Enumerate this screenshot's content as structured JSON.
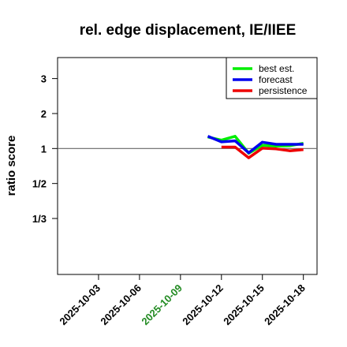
{
  "chart_data": {
    "type": "line",
    "title": "rel. edge displacement, IE/IIEE",
    "xlabel": "",
    "ylabel": "ratio score",
    "y_scale": "reciprocal-symmetric (values below 1 shown as 1/n)",
    "ylim": [
      -2.6,
      3.6
    ],
    "y_ticks": [
      {
        "label": "3",
        "value": 3
      },
      {
        "label": "2",
        "value": 2
      },
      {
        "label": "1",
        "value": 1
      },
      {
        "label": "1/2",
        "value": 0.5
      },
      {
        "label": "1/3",
        "value": 0.3333
      }
    ],
    "x_range": [
      "2025-09-30",
      "2025-10-19"
    ],
    "x_ticks": [
      {
        "label": "2025-10-03",
        "date": "2025-10-03",
        "color": "#000000"
      },
      {
        "label": "2025-10-06",
        "date": "2025-10-06",
        "color": "#000000"
      },
      {
        "label": "2025-10-09",
        "date": "2025-10-09",
        "color": "#228B22"
      },
      {
        "label": "2025-10-12",
        "date": "2025-10-12",
        "color": "#000000"
      },
      {
        "label": "2025-10-15",
        "date": "2025-10-15",
        "color": "#000000"
      },
      {
        "label": "2025-10-18",
        "date": "2025-10-18",
        "color": "#000000"
      }
    ],
    "reference_line": 1,
    "legend_position": "top-right",
    "series": [
      {
        "name": "best est.",
        "color": "#00ee00",
        "x": [
          "2025-10-11",
          "2025-10-12",
          "2025-10-13",
          "2025-10-14",
          "2025-10-15",
          "2025-10-16",
          "2025-10-17",
          "2025-10-18"
        ],
        "values": [
          1.33,
          1.24,
          1.35,
          0.88,
          1.09,
          1.07,
          1.08,
          1.15
        ]
      },
      {
        "name": "forecast",
        "color": "#0000ee",
        "x": [
          "2025-10-11",
          "2025-10-12",
          "2025-10-13",
          "2025-10-14",
          "2025-10-15",
          "2025-10-16",
          "2025-10-17",
          "2025-10-18"
        ],
        "values": [
          1.35,
          1.19,
          1.22,
          0.89,
          1.18,
          1.12,
          1.12,
          1.12
        ]
      },
      {
        "name": "persistence",
        "color": "#ee0000",
        "x": [
          "2025-10-12",
          "2025-10-13",
          "2025-10-14",
          "2025-10-15",
          "2025-10-16",
          "2025-10-17",
          "2025-10-18"
        ],
        "values": [
          1.04,
          1.04,
          0.79,
          1.01,
          0.99,
          0.94,
          0.97
        ]
      }
    ]
  }
}
